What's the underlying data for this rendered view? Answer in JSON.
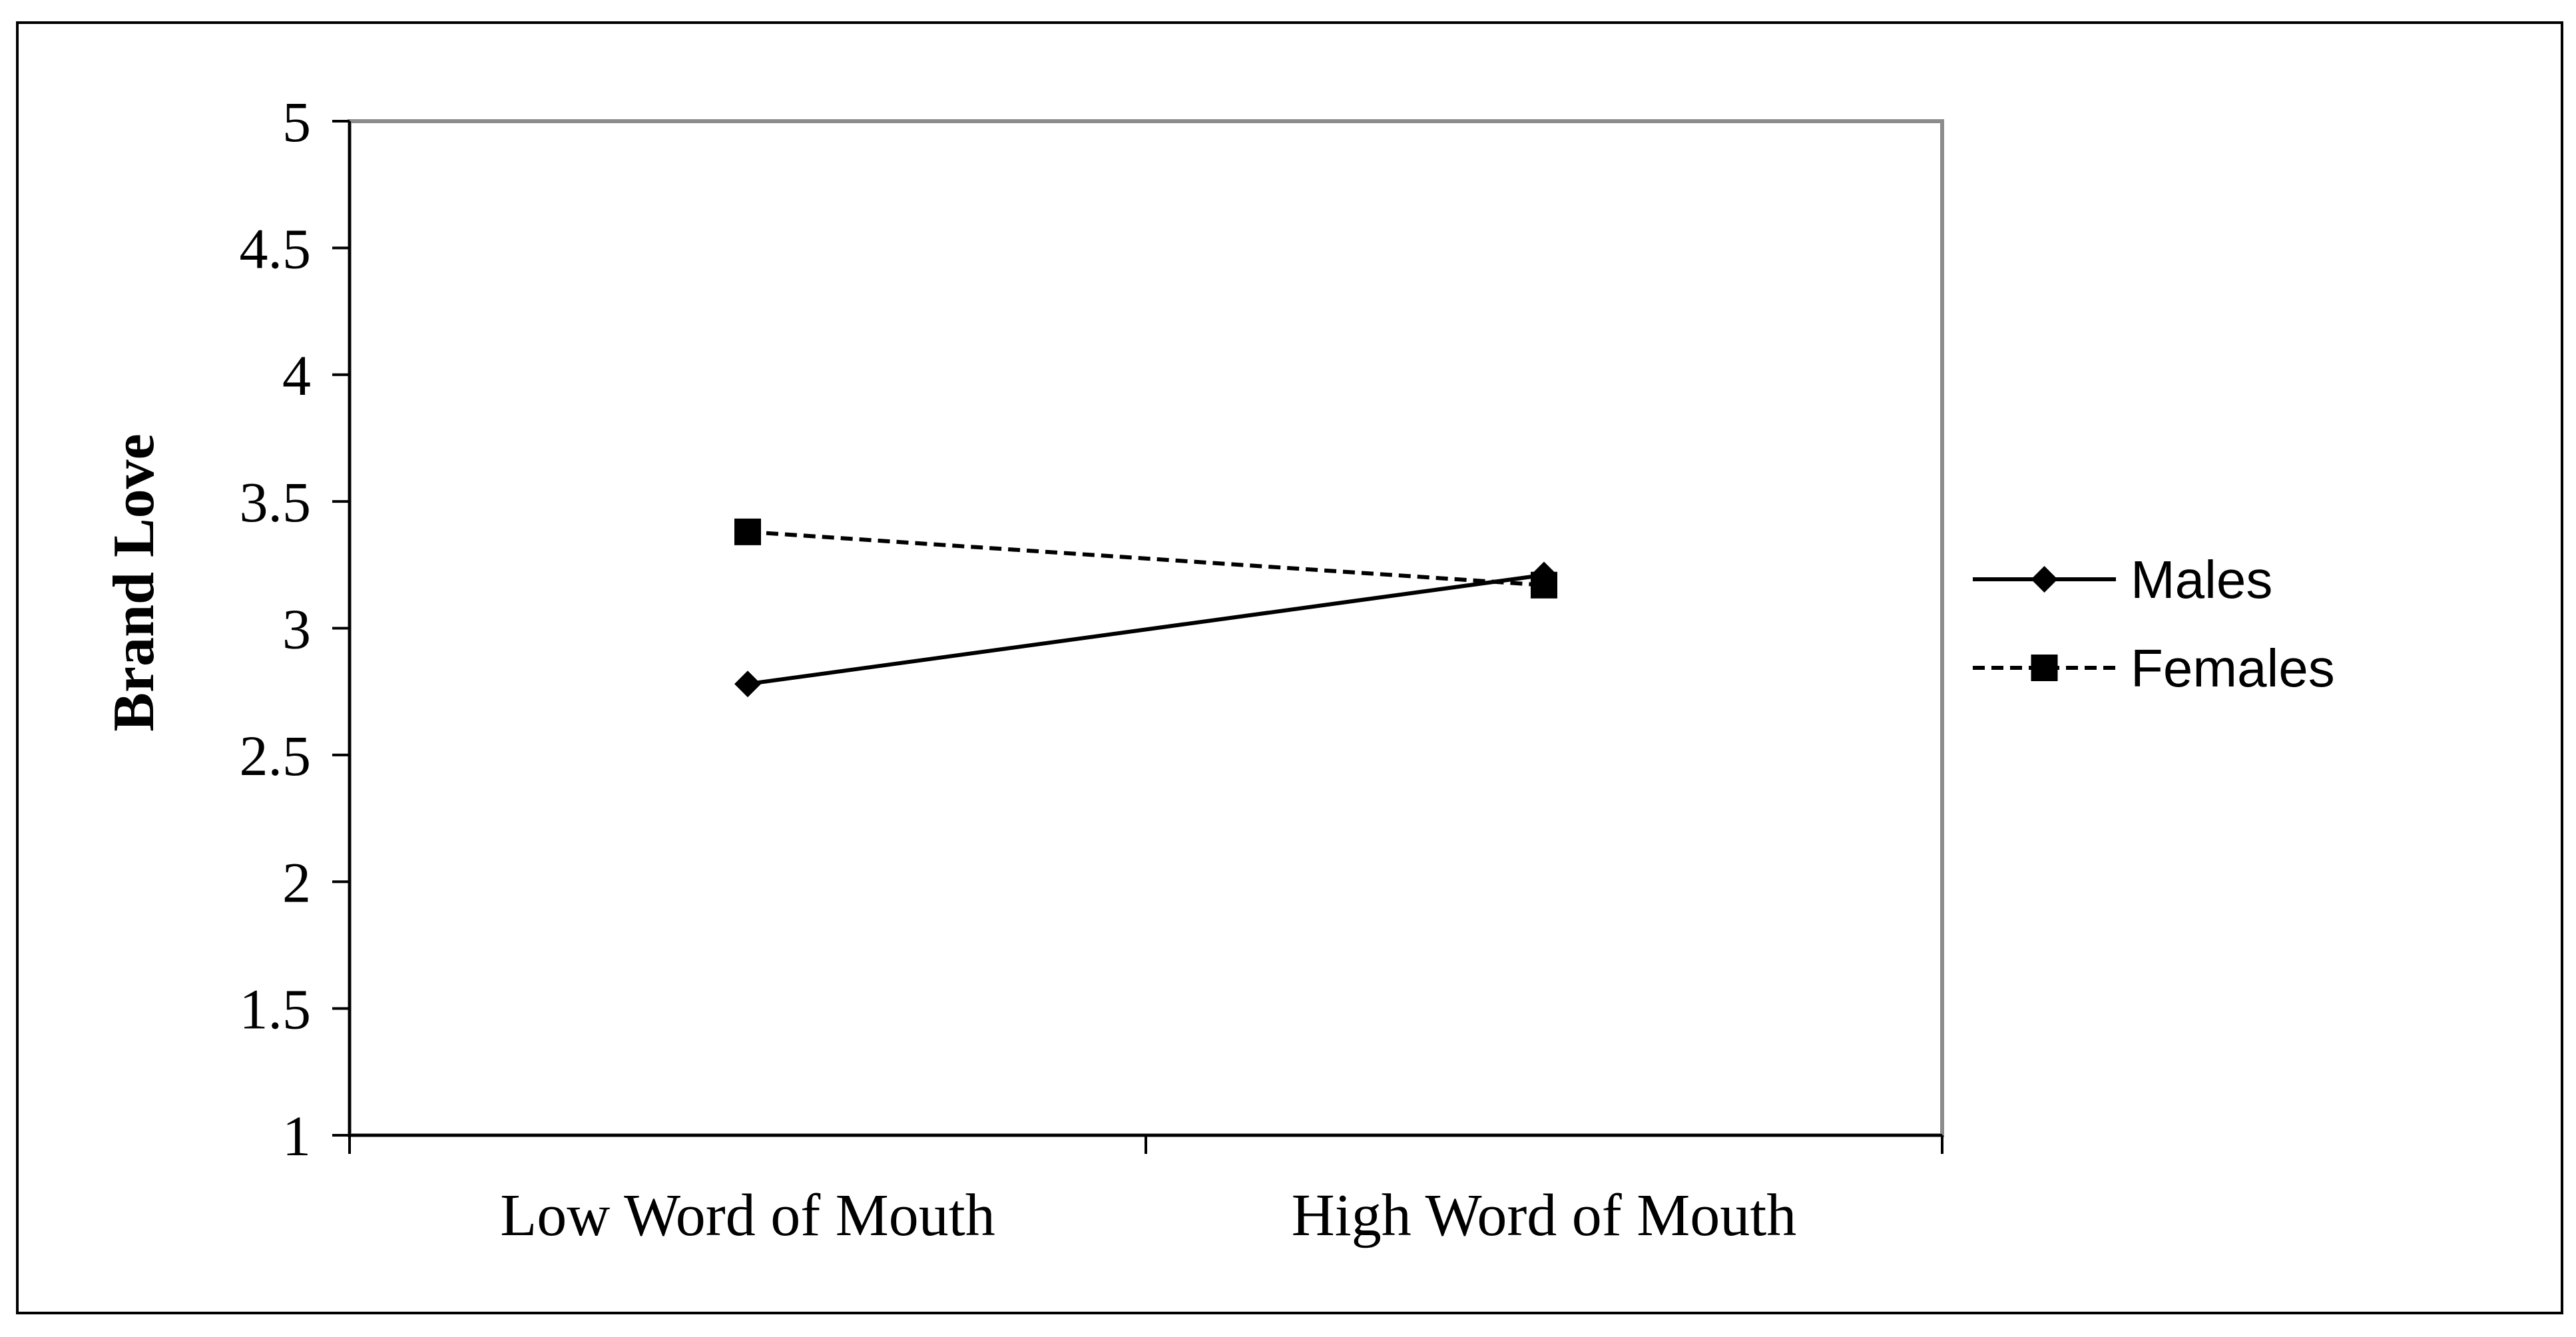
{
  "chart_data": {
    "type": "line",
    "title": "",
    "xlabel": "",
    "ylabel": "Brand Love",
    "categories": [
      "Low Word of Mouth",
      "High Word of Mouth"
    ],
    "ylim": [
      1,
      5
    ],
    "yticks": [
      "1",
      "1.5",
      "2",
      "2.5",
      "3",
      "3.5",
      "4",
      "4.5",
      "5"
    ],
    "grid": false,
    "legend_position": "right",
    "series": [
      {
        "name": "Males",
        "values": [
          2.78,
          3.21
        ],
        "marker": "diamond",
        "line_style": "solid",
        "color": "#000000"
      },
      {
        "name": "Females",
        "values": [
          3.38,
          3.17
        ],
        "marker": "square",
        "line_style": "dashed",
        "color": "#000000"
      }
    ]
  }
}
